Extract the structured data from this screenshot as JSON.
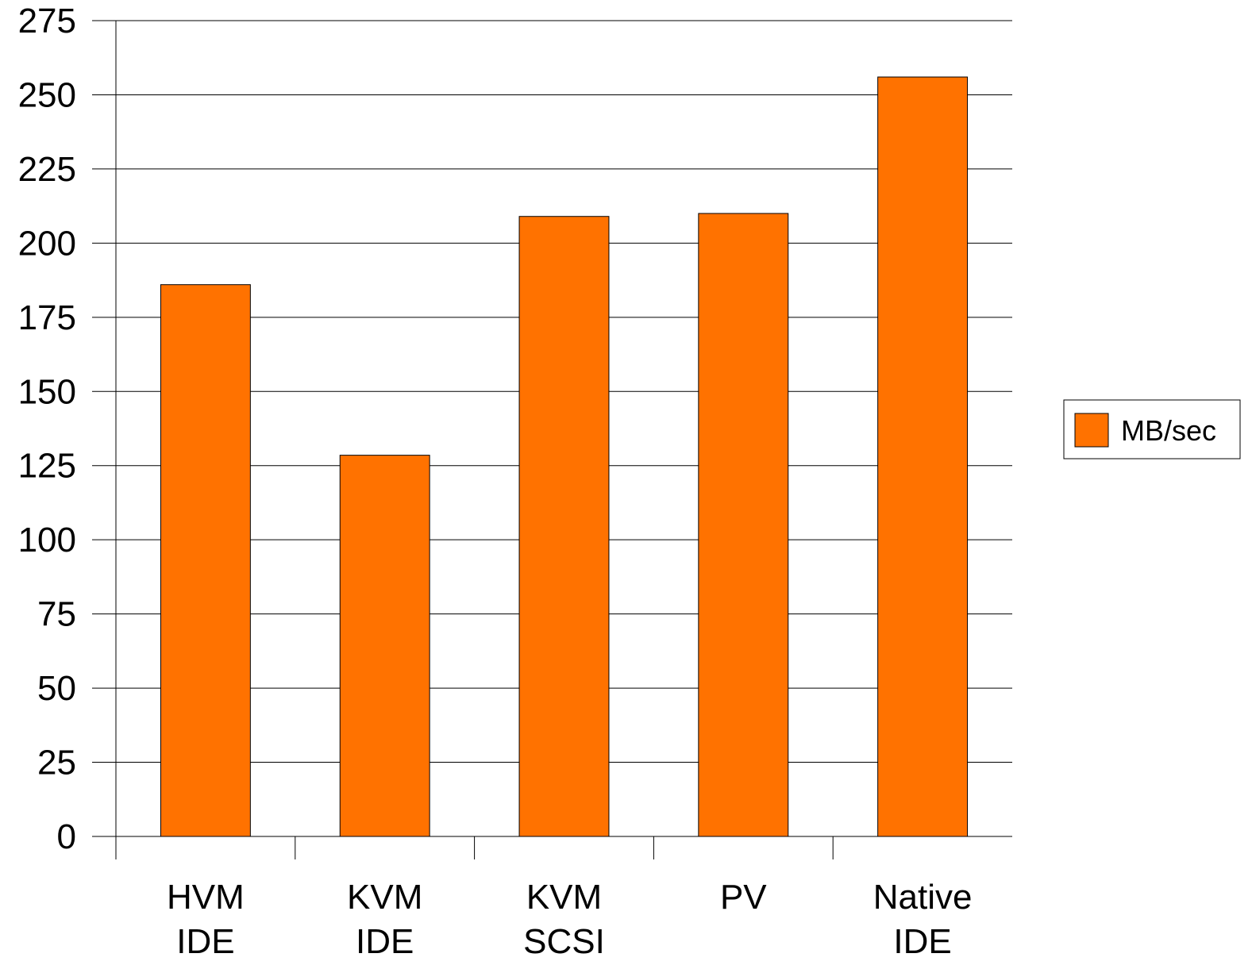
{
  "chart_data": {
    "type": "bar",
    "categories": [
      [
        "HVM",
        "IDE"
      ],
      [
        "KVM",
        "IDE"
      ],
      [
        "KVM",
        "SCSI"
      ],
      [
        "PV"
      ],
      [
        "Native",
        "IDE"
      ]
    ],
    "series": [
      {
        "name": "MB/sec",
        "values": [
          186,
          128.5,
          209,
          210,
          256
        ]
      }
    ],
    "ylim": [
      0,
      275
    ],
    "yticks": [
      0,
      25,
      50,
      75,
      100,
      125,
      150,
      175,
      200,
      225,
      250,
      275
    ],
    "grid": true,
    "legend_position": "right",
    "bar_color": "#ff7200"
  }
}
